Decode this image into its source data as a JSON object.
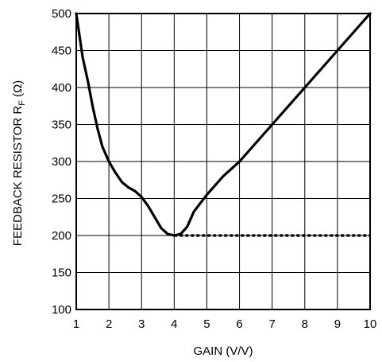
{
  "chart_data": {
    "type": "line",
    "title": "",
    "xlabel": "GAIN (V/V)",
    "ylabel_main": "FEEDBACK RESISTOR R",
    "ylabel_sub": "F",
    "ylabel_unit": "(Ω)",
    "xlim": [
      1,
      10
    ],
    "ylim": [
      100,
      500
    ],
    "x_ticks": [
      1,
      2,
      3,
      4,
      5,
      6,
      7,
      8,
      9,
      10
    ],
    "y_ticks": [
      100,
      150,
      200,
      250,
      300,
      350,
      400,
      450,
      500
    ],
    "x_tick_labels": [
      "1",
      "2",
      "3",
      "4",
      "5",
      "6",
      "7",
      "8",
      "9",
      "10"
    ],
    "y_tick_labels": [
      "100",
      "150",
      "200",
      "250",
      "300",
      "350",
      "400",
      "450",
      "500"
    ],
    "grid": true,
    "legend": "none",
    "series": [
      {
        "style": "solid",
        "x": [
          1.0,
          1.1,
          1.2,
          1.35,
          1.5,
          1.65,
          1.8,
          2.0,
          2.2,
          2.4,
          2.6,
          2.8,
          3.0,
          3.2,
          3.4,
          3.6,
          3.8,
          4.0,
          4.2,
          4.4,
          4.6,
          5.0,
          5.5,
          6.0,
          7.0,
          8.0,
          9.0,
          10.0
        ],
        "y": [
          500,
          470,
          440,
          410,
          375,
          345,
          320,
          300,
          285,
          272,
          265,
          260,
          252,
          240,
          225,
          210,
          202,
          200,
          202,
          212,
          232,
          255,
          280,
          300,
          350,
          400,
          450,
          500
        ]
      },
      {
        "style": "dashed",
        "x": [
          4.0,
          10.0
        ],
        "y": [
          200,
          200
        ]
      }
    ]
  }
}
